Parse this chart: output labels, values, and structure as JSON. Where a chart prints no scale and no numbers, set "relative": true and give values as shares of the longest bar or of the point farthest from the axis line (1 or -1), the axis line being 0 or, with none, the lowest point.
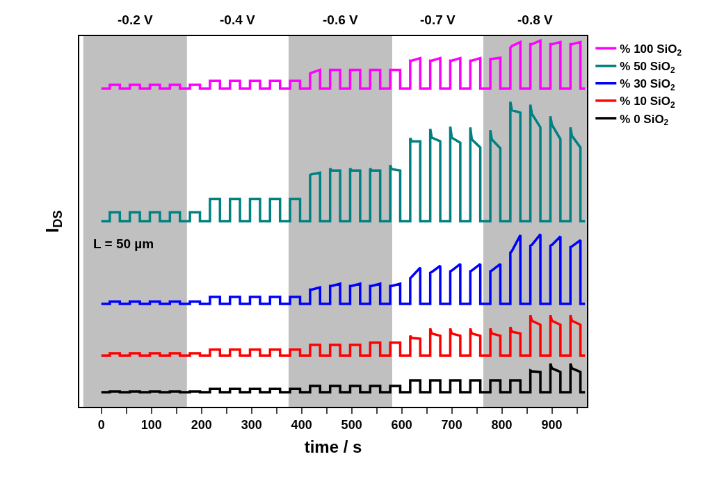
{
  "chart_data": {
    "type": "line",
    "relative": true,
    "xlabel": "time / s",
    "ylabel": "I$_{DS}$",
    "legend": "top right",
    "grid": false,
    "marker": "none",
    "line_style": "solid",
    "xlim": [
      -44,
      970
    ],
    "xticks": [
      0,
      {
        "value": 50,
        "label": null
      },
      100,
      {
        "value": 150,
        "label": null
      },
      200,
      {
        "value": 250,
        "label": null
      },
      300,
      {
        "value": 350,
        "label": null
      },
      400,
      {
        "value": 450,
        "label": null
      },
      500,
      {
        "value": 550,
        "label": null
      },
      600,
      {
        "value": 650,
        "label": null
      },
      700,
      {
        "value": 750,
        "label": null
      },
      800,
      {
        "value": 850,
        "label": null
      },
      900,
      {
        "value": 950,
        "label": null
      }
    ],
    "x": [
      0,
      17,
      17,
      20,
      37,
      37,
      57,
      57,
      60,
      77,
      77,
      97,
      97,
      100,
      117,
      117,
      137,
      137,
      140,
      157,
      157,
      177,
      177,
      180,
      197,
      197,
      217,
      217,
      220,
      237,
      237,
      257,
      257,
      260,
      277,
      277,
      297,
      297,
      300,
      317,
      317,
      337,
      337,
      340,
      357,
      357,
      377,
      377,
      380,
      397,
      397,
      417,
      417,
      420,
      437,
      437,
      457,
      457,
      460,
      477,
      477,
      497,
      497,
      500,
      517,
      517,
      537,
      537,
      540,
      557,
      557,
      577,
      577,
      580,
      597,
      597,
      617,
      617,
      620,
      637,
      637,
      657,
      657,
      660,
      677,
      677,
      697,
      697,
      700,
      717,
      717,
      737,
      737,
      740,
      757,
      757,
      777,
      777,
      780,
      797,
      797,
      817,
      817,
      820,
      837,
      837,
      857,
      857,
      860,
      877,
      877,
      897,
      897,
      900,
      917,
      917,
      937,
      937,
      940,
      957,
      957,
      966
    ],
    "series": [
      {
        "name": "% 100 SiO$_{2}$",
        "color": "#ff00ff",
        "values": [
          0.869,
          0.869,
          0.879,
          0.879,
          0.879,
          0.869,
          0.869,
          0.879,
          0.879,
          0.879,
          0.869,
          0.869,
          0.879,
          0.879,
          0.879,
          0.869,
          0.869,
          0.879,
          0.879,
          0.879,
          0.869,
          0.869,
          0.879,
          0.879,
          0.879,
          0.869,
          0.869,
          0.89,
          0.89,
          0.89,
          0.869,
          0.869,
          0.89,
          0.89,
          0.89,
          0.869,
          0.869,
          0.89,
          0.89,
          0.89,
          0.869,
          0.869,
          0.89,
          0.89,
          0.89,
          0.869,
          0.869,
          0.89,
          0.89,
          0.89,
          0.869,
          0.869,
          0.91,
          0.912,
          0.92,
          0.869,
          0.869,
          0.92,
          0.92,
          0.92,
          0.869,
          0.869,
          0.92,
          0.92,
          0.92,
          0.869,
          0.869,
          0.92,
          0.92,
          0.92,
          0.869,
          0.869,
          0.92,
          0.92,
          0.92,
          0.869,
          0.869,
          0.945,
          0.945,
          0.952,
          0.869,
          0.869,
          0.945,
          0.945,
          0.952,
          0.869,
          0.869,
          0.945,
          0.945,
          0.952,
          0.869,
          0.869,
          0.945,
          0.945,
          0.952,
          0.869,
          0.869,
          0.95,
          0.95,
          0.953,
          0.869,
          0.869,
          0.98,
          0.985,
          0.996,
          0.869,
          0.869,
          0.99,
          0.99,
          1.0,
          0.869,
          0.869,
          0.99,
          0.99,
          0.996,
          0.869,
          0.869,
          0.99,
          0.99,
          0.996,
          0.869,
          0.869
        ]
      },
      {
        "name": "% 50 SiO$_{2}$",
        "color": "#008080",
        "values": [
          0.507,
          0.507,
          0.531,
          0.531,
          0.531,
          0.507,
          0.507,
          0.531,
          0.531,
          0.531,
          0.507,
          0.507,
          0.531,
          0.531,
          0.531,
          0.507,
          0.507,
          0.531,
          0.531,
          0.531,
          0.507,
          0.507,
          0.531,
          0.531,
          0.531,
          0.507,
          0.507,
          0.567,
          0.567,
          0.567,
          0.507,
          0.507,
          0.567,
          0.567,
          0.567,
          0.507,
          0.507,
          0.567,
          0.567,
          0.567,
          0.507,
          0.507,
          0.567,
          0.567,
          0.567,
          0.507,
          0.507,
          0.567,
          0.567,
          0.567,
          0.507,
          0.507,
          0.633,
          0.635,
          0.639,
          0.507,
          0.507,
          0.651,
          0.645,
          0.645,
          0.507,
          0.507,
          0.651,
          0.645,
          0.645,
          0.507,
          0.507,
          0.651,
          0.645,
          0.645,
          0.507,
          0.507,
          0.66,
          0.649,
          0.645,
          0.507,
          0.507,
          0.734,
          0.725,
          0.725,
          0.507,
          0.507,
          0.759,
          0.735,
          0.725,
          0.507,
          0.507,
          0.765,
          0.735,
          0.721,
          0.507,
          0.507,
          0.763,
          0.73,
          0.708,
          0.507,
          0.507,
          0.755,
          0.73,
          0.706,
          0.507,
          0.507,
          0.833,
          0.81,
          0.803,
          0.507,
          0.507,
          0.825,
          0.8,
          0.763,
          0.507,
          0.507,
          0.793,
          0.77,
          0.731,
          0.507,
          0.507,
          0.763,
          0.74,
          0.708,
          0.507,
          0.507
        ]
      },
      {
        "name": "% 30 SiO$_{2}$",
        "color": "#0000ff",
        "values": [
          0.281,
          0.281,
          0.287,
          0.287,
          0.287,
          0.281,
          0.281,
          0.287,
          0.287,
          0.287,
          0.281,
          0.281,
          0.287,
          0.287,
          0.287,
          0.281,
          0.281,
          0.287,
          0.287,
          0.287,
          0.281,
          0.281,
          0.287,
          0.287,
          0.287,
          0.281,
          0.281,
          0.3,
          0.3,
          0.3,
          0.281,
          0.281,
          0.3,
          0.3,
          0.3,
          0.281,
          0.281,
          0.3,
          0.3,
          0.3,
          0.281,
          0.281,
          0.3,
          0.3,
          0.3,
          0.281,
          0.281,
          0.3,
          0.3,
          0.3,
          0.281,
          0.281,
          0.32,
          0.32,
          0.326,
          0.281,
          0.281,
          0.33,
          0.33,
          0.336,
          0.281,
          0.281,
          0.33,
          0.33,
          0.336,
          0.281,
          0.281,
          0.33,
          0.33,
          0.336,
          0.281,
          0.281,
          0.33,
          0.33,
          0.336,
          0.281,
          0.281,
          0.351,
          0.355,
          0.38,
          0.281,
          0.281,
          0.366,
          0.368,
          0.385,
          0.281,
          0.281,
          0.37,
          0.372,
          0.39,
          0.281,
          0.281,
          0.37,
          0.372,
          0.39,
          0.281,
          0.281,
          0.37,
          0.372,
          0.39,
          0.281,
          0.281,
          0.421,
          0.425,
          0.469,
          0.281,
          0.281,
          0.44,
          0.442,
          0.471,
          0.281,
          0.281,
          0.44,
          0.442,
          0.465,
          0.281,
          0.281,
          0.436,
          0.438,
          0.455,
          0.281,
          0.281
        ]
      },
      {
        "name": "% 10 SiO$_{2}$",
        "color": "#ff0000",
        "values": [
          0.14,
          0.14,
          0.146,
          0.146,
          0.146,
          0.14,
          0.14,
          0.146,
          0.146,
          0.146,
          0.14,
          0.14,
          0.146,
          0.146,
          0.146,
          0.14,
          0.14,
          0.146,
          0.146,
          0.146,
          0.14,
          0.14,
          0.146,
          0.146,
          0.146,
          0.14,
          0.14,
          0.156,
          0.156,
          0.156,
          0.14,
          0.14,
          0.156,
          0.156,
          0.156,
          0.14,
          0.14,
          0.156,
          0.156,
          0.156,
          0.14,
          0.14,
          0.156,
          0.156,
          0.156,
          0.14,
          0.14,
          0.156,
          0.156,
          0.156,
          0.14,
          0.14,
          0.169,
          0.169,
          0.169,
          0.14,
          0.14,
          0.169,
          0.169,
          0.169,
          0.14,
          0.14,
          0.169,
          0.169,
          0.169,
          0.14,
          0.14,
          0.175,
          0.175,
          0.175,
          0.14,
          0.14,
          0.175,
          0.175,
          0.175,
          0.14,
          0.14,
          0.194,
          0.188,
          0.186,
          0.14,
          0.14,
          0.214,
          0.2,
          0.194,
          0.14,
          0.14,
          0.214,
          0.2,
          0.194,
          0.14,
          0.14,
          0.214,
          0.2,
          0.194,
          0.14,
          0.14,
          0.214,
          0.2,
          0.194,
          0.14,
          0.14,
          0.218,
          0.205,
          0.2,
          0.14,
          0.14,
          0.25,
          0.235,
          0.224,
          0.14,
          0.14,
          0.25,
          0.235,
          0.224,
          0.14,
          0.14,
          0.25,
          0.235,
          0.224,
          0.14,
          0.14
        ]
      },
      {
        "name": "% 0 SiO$_{2}$",
        "color": "#000000",
        "values": [
          0.04,
          0.04,
          0.042,
          0.042,
          0.042,
          0.04,
          0.04,
          0.042,
          0.042,
          0.042,
          0.04,
          0.04,
          0.042,
          0.042,
          0.042,
          0.04,
          0.04,
          0.042,
          0.042,
          0.042,
          0.04,
          0.04,
          0.042,
          0.042,
          0.042,
          0.04,
          0.04,
          0.049,
          0.049,
          0.049,
          0.04,
          0.04,
          0.049,
          0.049,
          0.049,
          0.04,
          0.04,
          0.049,
          0.049,
          0.049,
          0.04,
          0.04,
          0.049,
          0.049,
          0.049,
          0.04,
          0.04,
          0.049,
          0.049,
          0.049,
          0.04,
          0.04,
          0.057,
          0.057,
          0.057,
          0.04,
          0.04,
          0.057,
          0.057,
          0.057,
          0.04,
          0.04,
          0.057,
          0.057,
          0.057,
          0.04,
          0.04,
          0.057,
          0.057,
          0.057,
          0.04,
          0.04,
          0.057,
          0.057,
          0.057,
          0.04,
          0.04,
          0.072,
          0.072,
          0.072,
          0.04,
          0.04,
          0.072,
          0.072,
          0.072,
          0.04,
          0.04,
          0.072,
          0.072,
          0.072,
          0.04,
          0.04,
          0.072,
          0.072,
          0.072,
          0.04,
          0.04,
          0.072,
          0.072,
          0.072,
          0.04,
          0.04,
          0.072,
          0.072,
          0.072,
          0.04,
          0.04,
          0.099,
          0.097,
          0.095,
          0.04,
          0.04,
          0.118,
          0.105,
          0.095,
          0.04,
          0.04,
          0.118,
          0.105,
          0.095,
          0.04,
          0.04
        ]
      }
    ],
    "bands": [
      {
        "axis": "x",
        "from": -36,
        "to": 171,
        "label": "-0.2 V",
        "color": "#c0c0c0"
      },
      {
        "axis": "x",
        "from": 374,
        "to": 581,
        "label": "-0.6 V",
        "color": "#c0c0c0"
      },
      {
        "axis": "x",
        "from": 763,
        "to": 970,
        "label": "-0.8 V",
        "color": "#c0c0c0"
      }
    ],
    "annotations": [
      "L = 50 µm",
      "-0.4 V",
      "-0.7 V"
    ]
  }
}
